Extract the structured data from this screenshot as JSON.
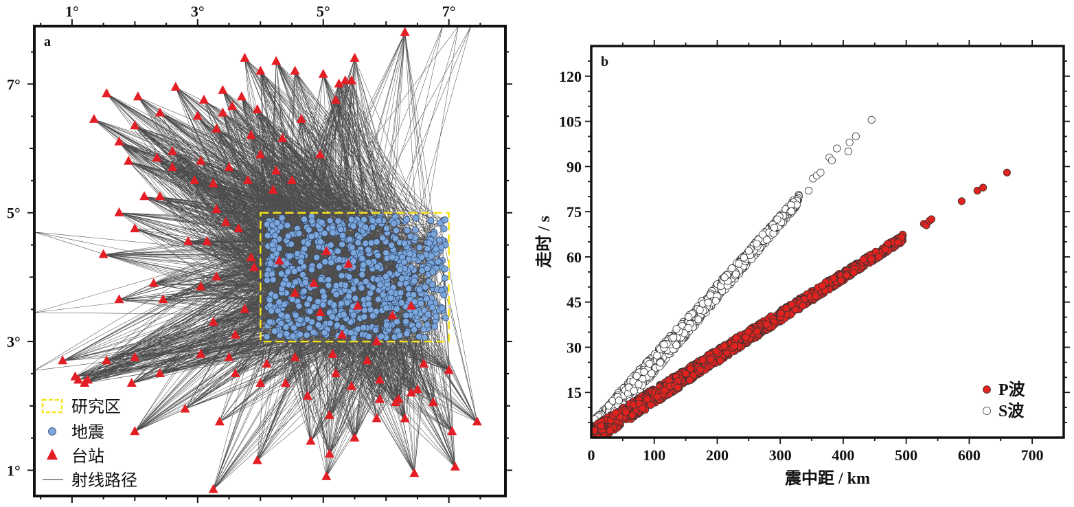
{
  "chart_data": [
    {
      "panel_label": "a",
      "type": "scatter",
      "x_tick_labels": [
        "1°",
        "3°",
        "5°",
        "7°"
      ],
      "y_tick_labels": [
        "1°",
        "3°",
        "5°",
        "7°"
      ],
      "xlim": [
        0.4,
        7.9
      ],
      "ylim": [
        0.6,
        7.9
      ],
      "study_area": {
        "x": [
          4.0,
          7.0
        ],
        "y": [
          3.0,
          5.0
        ]
      },
      "legend": {
        "study_area": "研究区",
        "earthquakes": "地震",
        "stations": "台站",
        "ray_paths": "射线路径"
      },
      "stations": [
        [
          1.55,
          6.85
        ],
        [
          1.35,
          6.45
        ],
        [
          2.05,
          6.8
        ],
        [
          2.0,
          6.35
        ],
        [
          2.65,
          6.95
        ],
        [
          3.1,
          6.75
        ],
        [
          3.4,
          6.9
        ],
        [
          3.7,
          6.8
        ],
        [
          3.75,
          7.4
        ],
        [
          4.0,
          7.2
        ],
        [
          4.25,
          7.35
        ],
        [
          4.55,
          7.2
        ],
        [
          5.0,
          7.15
        ],
        [
          5.2,
          6.75
        ],
        [
          5.25,
          7.0
        ],
        [
          5.35,
          7.05
        ],
        [
          5.45,
          7.05
        ],
        [
          5.5,
          7.4
        ],
        [
          6.3,
          7.8
        ],
        [
          1.75,
          6.1
        ],
        [
          1.9,
          5.8
        ],
        [
          2.35,
          5.85
        ],
        [
          2.4,
          6.55
        ],
        [
          2.6,
          5.95
        ],
        [
          2.6,
          5.7
        ],
        [
          3.0,
          6.5
        ],
        [
          3.3,
          6.3
        ],
        [
          3.4,
          6.55
        ],
        [
          3.55,
          6.65
        ],
        [
          3.95,
          6.6
        ],
        [
          3.85,
          6.2
        ],
        [
          4.0,
          5.9
        ],
        [
          4.35,
          6.15
        ],
        [
          4.65,
          6.45
        ],
        [
          4.95,
          5.9
        ],
        [
          3.05,
          5.8
        ],
        [
          3.5,
          5.7
        ],
        [
          3.25,
          5.45
        ],
        [
          2.95,
          5.5
        ],
        [
          3.8,
          5.5
        ],
        [
          4.2,
          5.35
        ],
        [
          4.25,
          5.65
        ],
        [
          4.5,
          5.5
        ],
        [
          2.15,
          5.25
        ],
        [
          2.4,
          5.25
        ],
        [
          1.75,
          5.0
        ],
        [
          2.0,
          4.75
        ],
        [
          2.85,
          4.55
        ],
        [
          3.15,
          4.55
        ],
        [
          3.3,
          5.05
        ],
        [
          3.45,
          4.85
        ],
        [
          3.65,
          4.75
        ],
        [
          3.85,
          4.3
        ],
        [
          3.9,
          4.15
        ],
        [
          4.3,
          4.25
        ],
        [
          4.55,
          3.75
        ],
        [
          5.05,
          4.4
        ],
        [
          5.4,
          4.2
        ],
        [
          4.85,
          3.9
        ],
        [
          5.55,
          3.55
        ],
        [
          4.95,
          3.45
        ],
        [
          6.1,
          3.4
        ],
        [
          6.4,
          3.55
        ],
        [
          5.3,
          3.1
        ],
        [
          5.85,
          3.0
        ],
        [
          1.5,
          4.35
        ],
        [
          2.3,
          3.9
        ],
        [
          1.75,
          3.65
        ],
        [
          2.45,
          3.65
        ],
        [
          3.05,
          3.85
        ],
        [
          3.3,
          4.0
        ],
        [
          3.25,
          3.3
        ],
        [
          3.6,
          3.1
        ],
        [
          3.75,
          3.5
        ],
        [
          0.85,
          2.7
        ],
        [
          1.55,
          2.7
        ],
        [
          2.0,
          2.75
        ],
        [
          1.05,
          2.45
        ],
        [
          1.1,
          2.4
        ],
        [
          1.2,
          2.35
        ],
        [
          1.25,
          2.4
        ],
        [
          1.95,
          2.35
        ],
        [
          2.4,
          2.5
        ],
        [
          3.05,
          2.8
        ],
        [
          3.5,
          2.75
        ],
        [
          3.6,
          2.5
        ],
        [
          4.0,
          2.35
        ],
        [
          4.1,
          2.65
        ],
        [
          4.4,
          2.35
        ],
        [
          4.55,
          2.75
        ],
        [
          4.75,
          2.15
        ],
        [
          5.15,
          2.8
        ],
        [
          5.2,
          2.5
        ],
        [
          5.45,
          2.3
        ],
        [
          5.7,
          2.7
        ],
        [
          5.9,
          2.1
        ],
        [
          5.9,
          2.4
        ],
        [
          6.15,
          2.05
        ],
        [
          6.2,
          2.1
        ],
        [
          6.4,
          2.2
        ],
        [
          6.5,
          2.25
        ],
        [
          6.6,
          2.65
        ],
        [
          6.75,
          2.05
        ],
        [
          7.0,
          2.55
        ],
        [
          2.8,
          1.95
        ],
        [
          3.35,
          1.75
        ],
        [
          5.1,
          1.85
        ],
        [
          5.85,
          1.8
        ],
        [
          6.3,
          1.8
        ],
        [
          7.05,
          1.6
        ],
        [
          7.45,
          1.75
        ],
        [
          2.0,
          1.6
        ],
        [
          3.95,
          1.15
        ],
        [
          4.8,
          1.45
        ],
        [
          5.1,
          1.25
        ],
        [
          5.5,
          1.5
        ],
        [
          6.45,
          0.95
        ],
        [
          7.1,
          1.05
        ],
        [
          3.25,
          0.7
        ],
        [
          5.05,
          0.9
        ]
      ],
      "ray_endpoints_outside_frame": [
        [
          0.4,
          4.7
        ],
        [
          0.4,
          3.45
        ],
        [
          0.4,
          2.55
        ],
        [
          7.35,
          7.9
        ],
        [
          7.15,
          7.9
        ],
        [
          6.9,
          7.9
        ]
      ]
    },
    {
      "panel_label": "b",
      "type": "scatter",
      "xlabel": "震中距 / km",
      "ylabel": "走时 / s",
      "xlim": [
        0,
        750
      ],
      "ylim": [
        0,
        130
      ],
      "x_ticks": [
        0,
        100,
        200,
        300,
        400,
        500,
        600,
        700
      ],
      "y_ticks": [
        15,
        30,
        45,
        60,
        75,
        90,
        105,
        120
      ],
      "legend_position": "bottom-right",
      "series": [
        {
          "name": "P波",
          "color": "#e0231f",
          "dense_band": {
            "x_range": [
              5,
              495
            ],
            "slope": 0.133,
            "intercept": 0.5,
            "spread": 3.0
          },
          "outliers": [
            [
              528,
              71
            ],
            [
              532,
              70.5
            ],
            [
              537,
              72
            ],
            [
              540,
              72.5
            ],
            [
              588,
              78.5
            ],
            [
              613,
              82
            ],
            [
              622,
              83
            ],
            [
              660,
              88
            ]
          ]
        },
        {
          "name": "S波",
          "color": "#ffffff",
          "dense_band": {
            "x_range": [
              5,
              330
            ],
            "slope": 0.237,
            "intercept": 1.0,
            "spread": 4.0
          },
          "outliers": [
            [
              345,
              82
            ],
            [
              352,
              86
            ],
            [
              358,
              87
            ],
            [
              364,
              88
            ],
            [
              378,
              93
            ],
            [
              382,
              92
            ],
            [
              390,
              96
            ],
            [
              408,
              95
            ],
            [
              410,
              98
            ],
            [
              420,
              100
            ],
            [
              445,
              105.5
            ]
          ]
        }
      ]
    }
  ]
}
